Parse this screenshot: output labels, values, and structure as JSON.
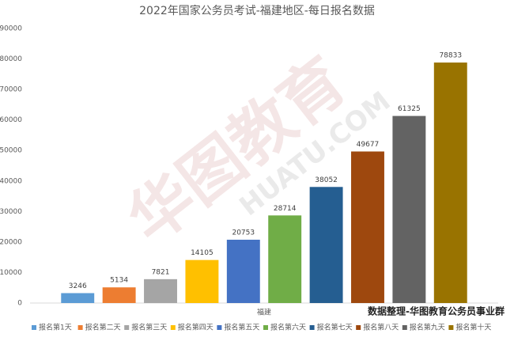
{
  "chart_data": {
    "type": "bar",
    "title": "2022年国家公务员考试-福建地区-每日报名数据",
    "categories": [
      "福建"
    ],
    "series": [
      {
        "name": "报名第1天",
        "color": "#5b9bd5",
        "values": [
          3246
        ]
      },
      {
        "name": "报名第二天",
        "color": "#ed7d31",
        "values": [
          5134
        ]
      },
      {
        "name": "报名第三天",
        "color": "#a5a5a5",
        "values": [
          7821
        ]
      },
      {
        "name": "报名第四天",
        "color": "#ffc000",
        "values": [
          14105
        ]
      },
      {
        "name": "报名第五天",
        "color": "#4472c4",
        "values": [
          20753
        ]
      },
      {
        "name": "报名第六天",
        "color": "#70ad47",
        "values": [
          28714
        ]
      },
      {
        "name": "报名第七天",
        "color": "#255e91",
        "values": [
          38052
        ]
      },
      {
        "name": "报名第八天",
        "color": "#9e480e",
        "values": [
          49677
        ]
      },
      {
        "name": "报名第九天",
        "color": "#636363",
        "values": [
          61325
        ]
      },
      {
        "name": "报名第十天",
        "color": "#997300",
        "values": [
          78833
        ]
      }
    ],
    "ylim": [
      0,
      90000
    ],
    "yticks": [
      0,
      10000,
      20000,
      30000,
      40000,
      50000,
      60000,
      70000,
      80000,
      90000
    ],
    "grid": false,
    "legend": "bottom",
    "annotation": "数据整理-华图教育公务员事业群",
    "watermark": [
      "华图教育",
      "HUATU.COM"
    ]
  }
}
